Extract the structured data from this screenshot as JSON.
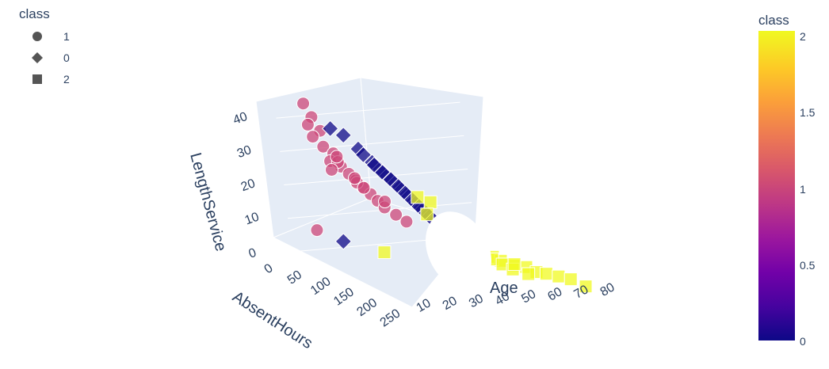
{
  "legend": {
    "title": "class",
    "items": [
      {
        "label": "1",
        "symbol": "circle"
      },
      {
        "label": "0",
        "symbol": "diamond"
      },
      {
        "label": "2",
        "symbol": "square"
      }
    ]
  },
  "colorbar": {
    "title": "class",
    "ticks": [
      "2",
      "1.5",
      "1",
      "0.5",
      "0"
    ],
    "colorscale": [
      "#0d0887",
      "#46039f",
      "#7201a8",
      "#9c179e",
      "#bd3786",
      "#d8576b",
      "#ed7953",
      "#fb9f3a",
      "#fdca26",
      "#f0f921"
    ]
  },
  "chart_data": {
    "type": "scatter",
    "dimensions": 3,
    "axes": {
      "x": {
        "label": "Age",
        "ticks": [
          "10",
          "20",
          "30",
          "40",
          "50",
          "60",
          "70",
          "80"
        ]
      },
      "y": {
        "label": "AbsentHours",
        "ticks": [
          "0",
          "50",
          "100",
          "150",
          "200",
          "250"
        ]
      },
      "z": {
        "label": "LengthService",
        "ticks": [
          "0",
          "10",
          "20",
          "30",
          "40"
        ]
      }
    },
    "series": [
      {
        "name": "1",
        "symbol": "circle",
        "color": "#cc4778",
        "points": [
          [
            20,
            5,
            44
          ],
          [
            22,
            8,
            40
          ],
          [
            20,
            10,
            38
          ],
          [
            24,
            12,
            36
          ],
          [
            22,
            6,
            34
          ],
          [
            25,
            9,
            31
          ],
          [
            28,
            12,
            29
          ],
          [
            26,
            15,
            27
          ],
          [
            30,
            14,
            25
          ],
          [
            32,
            18,
            23
          ],
          [
            34,
            20,
            21
          ],
          [
            36,
            22,
            19
          ],
          [
            38,
            26,
            17
          ],
          [
            40,
            28,
            15
          ],
          [
            42,
            30,
            13
          ],
          [
            30,
            8,
            26
          ],
          [
            27,
            10,
            24
          ],
          [
            35,
            16,
            20
          ],
          [
            45,
            36,
            11
          ],
          [
            48,
            40,
            9
          ],
          [
            20,
            3,
            6
          ],
          [
            33,
            24,
            22
          ],
          [
            29,
            13,
            28
          ],
          [
            38,
            12,
            18
          ],
          [
            44,
            20,
            14
          ]
        ]
      },
      {
        "name": "0",
        "symbol": "diamond",
        "color": "#0d0887",
        "points": [
          [
            20,
            60,
            40
          ],
          [
            24,
            64,
            38
          ],
          [
            28,
            70,
            34
          ],
          [
            32,
            74,
            30
          ],
          [
            34,
            78,
            28
          ],
          [
            36,
            80,
            26
          ],
          [
            38,
            84,
            24
          ],
          [
            40,
            86,
            22
          ],
          [
            42,
            88,
            20
          ],
          [
            44,
            90,
            18
          ],
          [
            46,
            92,
            16
          ],
          [
            48,
            94,
            14
          ],
          [
            50,
            96,
            12
          ],
          [
            35,
            76,
            27
          ],
          [
            33,
            72,
            29
          ],
          [
            37,
            82,
            25
          ],
          [
            39,
            85,
            23
          ],
          [
            41,
            87,
            21
          ],
          [
            43,
            89,
            19
          ],
          [
            45,
            91,
            17
          ],
          [
            25,
            30,
            4
          ],
          [
            30,
            68,
            32
          ],
          [
            47,
            93,
            15
          ],
          [
            49,
            95,
            13
          ],
          [
            52,
            98,
            10
          ]
        ]
      },
      {
        "name": "2",
        "symbol": "square",
        "color": "#f0f921",
        "points": [
          [
            40,
            120,
            22
          ],
          [
            45,
            118,
            20
          ],
          [
            42,
            125,
            17
          ],
          [
            48,
            130,
            12
          ],
          [
            50,
            135,
            10
          ],
          [
            52,
            140,
            8
          ],
          [
            55,
            145,
            7
          ],
          [
            57,
            150,
            6
          ],
          [
            60,
            155,
            5
          ],
          [
            62,
            160,
            4
          ],
          [
            65,
            170,
            3
          ],
          [
            68,
            180,
            3
          ],
          [
            70,
            190,
            2
          ],
          [
            72,
            200,
            2
          ],
          [
            74,
            215,
            2
          ],
          [
            76,
            230,
            2
          ],
          [
            78,
            250,
            1
          ],
          [
            55,
            160,
            6
          ],
          [
            58,
            165,
            5
          ],
          [
            60,
            175,
            4
          ],
          [
            50,
            150,
            7
          ],
          [
            54,
            155,
            8
          ],
          [
            62,
            185,
            3
          ],
          [
            66,
            195,
            2
          ],
          [
            35,
            60,
            2
          ],
          [
            64,
            178,
            4
          ],
          [
            47,
            128,
            12
          ],
          [
            53,
            138,
            9
          ]
        ]
      }
    ]
  }
}
